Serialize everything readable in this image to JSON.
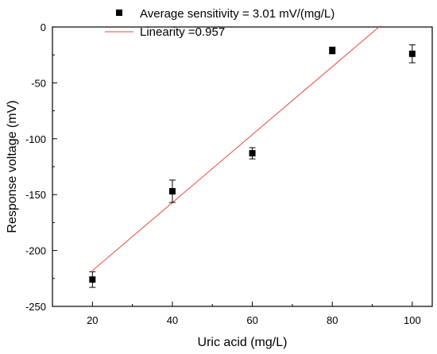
{
  "chart_data": {
    "type": "scatter",
    "title": "",
    "xlabel": "Uric acid (mg/L)",
    "ylabel": "Response voltage (mV)",
    "xlim": [
      10,
      105
    ],
    "ylim": [
      -250,
      0
    ],
    "x_ticks": [
      20,
      40,
      60,
      80,
      100
    ],
    "y_ticks": [
      0,
      -50,
      -100,
      -150,
      -200,
      -250
    ],
    "grid": false,
    "legend_position": "top",
    "series": [
      {
        "name": "Average sensitivity = 3.01 mV/(mg/L)",
        "kind": "points-with-error-bars",
        "marker": "square",
        "color": "#000000",
        "x": [
          20,
          40,
          60,
          80,
          100
        ],
        "y": [
          -226,
          -147,
          -113,
          -21,
          -24
        ],
        "err": [
          7,
          10,
          5,
          3,
          8
        ]
      },
      {
        "name": "Linearity =0.957",
        "kind": "fit-line",
        "color": "#e8463a",
        "x": [
          20,
          92
        ],
        "y": [
          -218,
          1
        ]
      }
    ]
  }
}
